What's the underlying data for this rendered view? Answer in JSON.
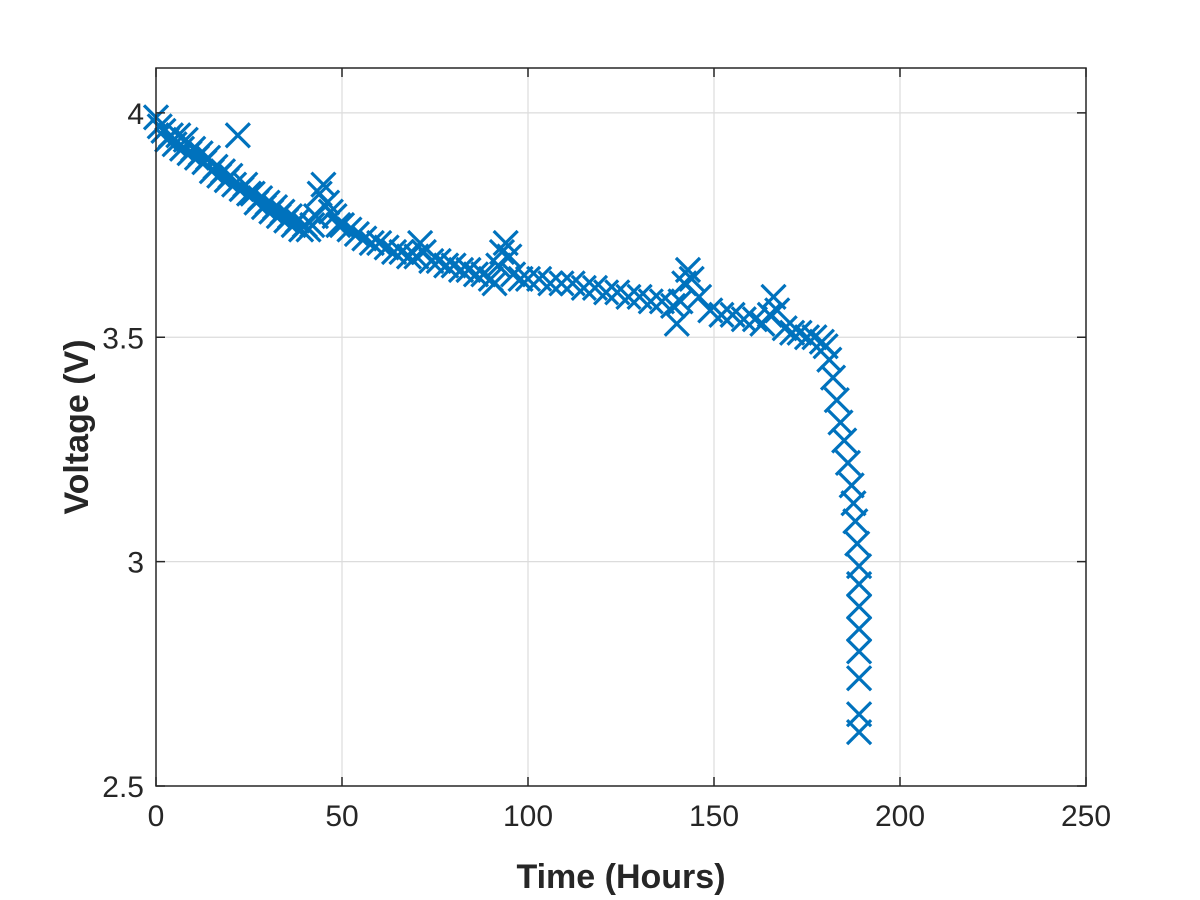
{
  "chart_data": {
    "type": "scatter",
    "title": "",
    "xlabel": "Time (Hours)",
    "ylabel": "Voltage (V)",
    "xlim": [
      0,
      250
    ],
    "ylim": [
      2.5,
      4.1
    ],
    "xticks": [
      "0",
      "50",
      "100",
      "150",
      "200",
      "250"
    ],
    "yticks": [
      "2.5",
      "3",
      "3.5",
      "4"
    ],
    "xtick_values": [
      0,
      50,
      100,
      150,
      200,
      250
    ],
    "ytick_values": [
      2.5,
      3,
      3.5,
      4
    ],
    "grid": true,
    "marker": "x",
    "series_color": "#0072BD",
    "series": [
      {
        "points": [
          [
            0,
            3.99
          ],
          [
            1,
            3.97
          ],
          [
            2,
            3.96
          ],
          [
            3,
            3.94
          ],
          [
            4,
            3.95
          ],
          [
            5,
            3.93
          ],
          [
            6,
            3.95
          ],
          [
            7,
            3.92
          ],
          [
            8,
            3.94
          ],
          [
            9,
            3.91
          ],
          [
            10,
            3.92
          ],
          [
            11,
            3.9
          ],
          [
            12,
            3.91
          ],
          [
            13,
            3.89
          ],
          [
            14,
            3.9
          ],
          [
            15,
            3.87
          ],
          [
            16,
            3.88
          ],
          [
            17,
            3.86
          ],
          [
            18,
            3.87
          ],
          [
            19,
            3.85
          ],
          [
            20,
            3.86
          ],
          [
            21,
            3.84
          ],
          [
            22,
            3.95
          ],
          [
            23,
            3.83
          ],
          [
            24,
            3.84
          ],
          [
            25,
            3.82
          ],
          [
            26,
            3.82
          ],
          [
            27,
            3.8
          ],
          [
            28,
            3.81
          ],
          [
            29,
            3.79
          ],
          [
            30,
            3.8
          ],
          [
            31,
            3.78
          ],
          [
            32,
            3.79
          ],
          [
            33,
            3.77
          ],
          [
            34,
            3.78
          ],
          [
            35,
            3.76
          ],
          [
            36,
            3.77
          ],
          [
            37,
            3.75
          ],
          [
            38,
            3.76
          ],
          [
            39,
            3.74
          ],
          [
            40,
            3.75
          ],
          [
            41,
            3.74
          ],
          [
            42,
            3.75
          ],
          [
            43,
            3.77
          ],
          [
            44,
            3.82
          ],
          [
            45,
            3.84
          ],
          [
            46,
            3.8
          ],
          [
            47,
            3.78
          ],
          [
            48,
            3.77
          ],
          [
            49,
            3.75
          ],
          [
            50,
            3.75
          ],
          [
            52,
            3.74
          ],
          [
            54,
            3.73
          ],
          [
            56,
            3.72
          ],
          [
            58,
            3.71
          ],
          [
            60,
            3.71
          ],
          [
            62,
            3.7
          ],
          [
            64,
            3.69
          ],
          [
            66,
            3.69
          ],
          [
            68,
            3.68
          ],
          [
            70,
            3.68
          ],
          [
            71,
            3.71
          ],
          [
            72,
            3.69
          ],
          [
            74,
            3.67
          ],
          [
            76,
            3.67
          ],
          [
            78,
            3.66
          ],
          [
            80,
            3.66
          ],
          [
            82,
            3.65
          ],
          [
            84,
            3.65
          ],
          [
            86,
            3.64
          ],
          [
            88,
            3.64
          ],
          [
            90,
            3.63
          ],
          [
            91,
            3.62
          ],
          [
            92,
            3.66
          ],
          [
            93,
            3.69
          ],
          [
            94,
            3.71
          ],
          [
            95,
            3.68
          ],
          [
            96,
            3.64
          ],
          [
            98,
            3.63
          ],
          [
            100,
            3.63
          ],
          [
            103,
            3.63
          ],
          [
            106,
            3.62
          ],
          [
            109,
            3.62
          ],
          [
            112,
            3.62
          ],
          [
            115,
            3.61
          ],
          [
            118,
            3.61
          ],
          [
            121,
            3.6
          ],
          [
            124,
            3.6
          ],
          [
            127,
            3.59
          ],
          [
            130,
            3.59
          ],
          [
            133,
            3.58
          ],
          [
            136,
            3.58
          ],
          [
            139,
            3.57
          ],
          [
            140,
            3.53
          ],
          [
            141,
            3.58
          ],
          [
            142,
            3.62
          ],
          [
            143,
            3.65
          ],
          [
            144,
            3.63
          ],
          [
            146,
            3.59
          ],
          [
            149,
            3.56
          ],
          [
            152,
            3.55
          ],
          [
            155,
            3.55
          ],
          [
            158,
            3.54
          ],
          [
            161,
            3.54
          ],
          [
            163,
            3.53
          ],
          [
            165,
            3.55
          ],
          [
            166,
            3.59
          ],
          [
            167,
            3.56
          ],
          [
            169,
            3.52
          ],
          [
            171,
            3.51
          ],
          [
            173,
            3.51
          ],
          [
            175,
            3.5
          ],
          [
            177,
            3.5
          ],
          [
            179,
            3.49
          ],
          [
            180,
            3.48
          ],
          [
            181,
            3.45
          ],
          [
            182,
            3.41
          ],
          [
            183,
            3.36
          ],
          [
            184,
            3.31
          ],
          [
            185,
            3.27
          ],
          [
            186,
            3.22
          ],
          [
            187,
            3.17
          ],
          [
            187.5,
            3.13
          ],
          [
            188,
            3.09
          ],
          [
            188.5,
            3.04
          ],
          [
            189,
            2.99
          ],
          [
            189,
            2.95
          ],
          [
            189,
            2.9
          ],
          [
            189,
            2.85
          ],
          [
            189,
            2.8
          ],
          [
            189,
            2.74
          ],
          [
            189,
            2.66
          ],
          [
            189,
            2.62
          ]
        ]
      }
    ]
  }
}
